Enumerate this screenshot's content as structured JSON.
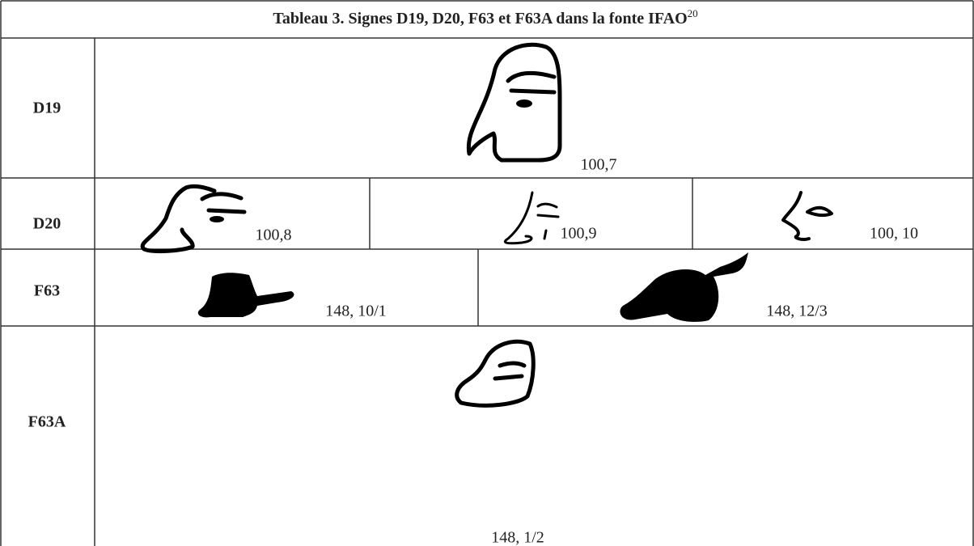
{
  "table": {
    "title": "Tableau 3. Signes D19, D20, F63 et F63A dans la fonte IFAO",
    "title_note": "20",
    "rows": [
      {
        "label": "D19",
        "cells": [
          "100,7"
        ]
      },
      {
        "label": "D20",
        "cells": [
          "100,8",
          "100,9",
          "100, 10"
        ]
      },
      {
        "label": "F63",
        "cells": [
          "148, 10/1",
          "148, 12/3"
        ]
      },
      {
        "label": "F63A",
        "cells": [
          "148, 1/2"
        ]
      }
    ]
  }
}
